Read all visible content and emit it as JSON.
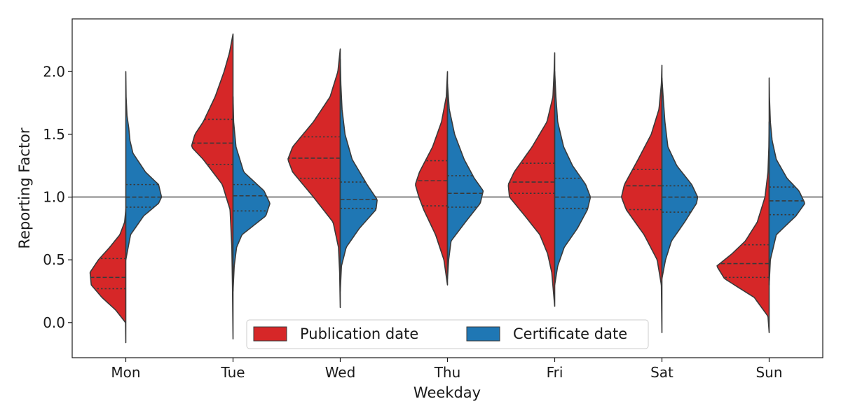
{
  "chart_data": {
    "type": "violin",
    "split": true,
    "xlabel": "Weekday",
    "ylabel": "Reporting Factor",
    "categories": [
      "Mon",
      "Tue",
      "Wed",
      "Thu",
      "Fri",
      "Sat",
      "Sun"
    ],
    "ylim": [
      -0.28,
      2.42
    ],
    "yticks": [
      0.0,
      0.5,
      1.0,
      1.5,
      2.0
    ],
    "ytick_labels": [
      "0.0",
      "0.5",
      "1.0",
      "1.5",
      "2.0"
    ],
    "reference_line": 1.0,
    "legend": {
      "placement": "lower-center",
      "ncol": 2
    },
    "series": [
      {
        "name": "Publication date",
        "color": "#d62728",
        "violins": [
          {
            "quartiles": [
              0.27,
              0.36,
              0.51
            ],
            "profile": [
              [
                -0.16,
                0.0
              ],
              [
                0.0,
                0.005
              ],
              [
                0.1,
                0.17
              ],
              [
                0.2,
                0.4
              ],
              [
                0.3,
                0.58
              ],
              [
                0.4,
                0.6
              ],
              [
                0.5,
                0.46
              ],
              [
                0.6,
                0.27
              ],
              [
                0.7,
                0.1
              ],
              [
                0.8,
                0.02
              ],
              [
                0.9,
                0.0
              ]
            ]
          },
          {
            "quartiles": [
              1.26,
              1.43,
              1.62
            ],
            "profile": [
              [
                -0.13,
                0.0
              ],
              [
                0.3,
                0.01
              ],
              [
                0.6,
                0.02
              ],
              [
                0.9,
                0.05
              ],
              [
                1.1,
                0.18
              ],
              [
                1.3,
                0.5
              ],
              [
                1.4,
                0.7
              ],
              [
                1.5,
                0.64
              ],
              [
                1.6,
                0.5
              ],
              [
                1.8,
                0.3
              ],
              [
                2.0,
                0.15
              ],
              [
                2.15,
                0.06
              ],
              [
                2.3,
                0.0
              ]
            ]
          },
          {
            "quartiles": [
              1.15,
              1.31,
              1.48
            ],
            "profile": [
              [
                0.12,
                0.0
              ],
              [
                0.4,
                0.01
              ],
              [
                0.6,
                0.03
              ],
              [
                0.8,
                0.12
              ],
              [
                1.0,
                0.45
              ],
              [
                1.2,
                0.8
              ],
              [
                1.3,
                0.88
              ],
              [
                1.4,
                0.8
              ],
              [
                1.6,
                0.45
              ],
              [
                1.8,
                0.17
              ],
              [
                2.0,
                0.04
              ],
              [
                2.18,
                0.0
              ]
            ]
          },
          {
            "quartiles": [
              0.93,
              1.13,
              1.29
            ],
            "profile": [
              [
                0.3,
                0.0
              ],
              [
                0.5,
                0.06
              ],
              [
                0.7,
                0.2
              ],
              [
                0.9,
                0.4
              ],
              [
                1.0,
                0.48
              ],
              [
                1.1,
                0.54
              ],
              [
                1.2,
                0.47
              ],
              [
                1.4,
                0.25
              ],
              [
                1.6,
                0.1
              ],
              [
                1.8,
                0.02
              ],
              [
                2.0,
                0.0
              ]
            ]
          },
          {
            "quartiles": [
              1.03,
              1.12,
              1.27
            ],
            "profile": [
              [
                0.13,
                0.0
              ],
              [
                0.4,
                0.05
              ],
              [
                0.55,
                0.12
              ],
              [
                0.7,
                0.25
              ],
              [
                0.85,
                0.5
              ],
              [
                1.0,
                0.76
              ],
              [
                1.1,
                0.78
              ],
              [
                1.2,
                0.68
              ],
              [
                1.4,
                0.38
              ],
              [
                1.6,
                0.13
              ],
              [
                1.8,
                0.03
              ],
              [
                2.0,
                0.01
              ],
              [
                2.15,
                0.0
              ]
            ]
          },
          {
            "quartiles": [
              0.9,
              1.09,
              1.22
            ],
            "profile": [
              [
                -0.08,
                0.0
              ],
              [
                0.3,
                0.01
              ],
              [
                0.5,
                0.08
              ],
              [
                0.7,
                0.3
              ],
              [
                0.9,
                0.6
              ],
              [
                1.0,
                0.68
              ],
              [
                1.1,
                0.63
              ],
              [
                1.3,
                0.4
              ],
              [
                1.5,
                0.18
              ],
              [
                1.7,
                0.05
              ],
              [
                1.9,
                0.01
              ],
              [
                2.05,
                0.0
              ]
            ]
          },
          {
            "quartiles": [
              0.36,
              0.47,
              0.62
            ],
            "profile": [
              [
                -0.08,
                0.0
              ],
              [
                0.05,
                0.02
              ],
              [
                0.2,
                0.25
              ],
              [
                0.35,
                0.75
              ],
              [
                0.45,
                0.88
              ],
              [
                0.55,
                0.62
              ],
              [
                0.65,
                0.4
              ],
              [
                0.8,
                0.2
              ],
              [
                1.0,
                0.07
              ],
              [
                1.2,
                0.02
              ],
              [
                1.4,
                0.005
              ],
              [
                1.6,
                0.0
              ]
            ]
          }
        ]
      },
      {
        "name": "Certificate date",
        "color": "#1f77b4",
        "violins": [
          {
            "quartiles": [
              0.92,
              1.0,
              1.1
            ],
            "profile": [
              [
                0.5,
                0.0
              ],
              [
                0.7,
                0.08
              ],
              [
                0.85,
                0.3
              ],
              [
                0.95,
                0.55
              ],
              [
                1.0,
                0.6
              ],
              [
                1.1,
                0.55
              ],
              [
                1.2,
                0.33
              ],
              [
                1.35,
                0.12
              ],
              [
                1.45,
                0.07
              ],
              [
                1.55,
                0.05
              ],
              [
                1.65,
                0.02
              ],
              [
                1.8,
                0.005
              ],
              [
                2.0,
                0.0
              ]
            ]
          },
          {
            "quartiles": [
              0.89,
              1.01,
              1.1
            ],
            "profile": [
              [
                0.25,
                0.0
              ],
              [
                0.45,
                0.02
              ],
              [
                0.6,
                0.06
              ],
              [
                0.7,
                0.15
              ],
              [
                0.85,
                0.55
              ],
              [
                0.95,
                0.62
              ],
              [
                1.05,
                0.52
              ],
              [
                1.2,
                0.18
              ],
              [
                1.4,
                0.05
              ],
              [
                1.6,
                0.01
              ],
              [
                1.8,
                0.0
              ]
            ]
          },
          {
            "quartiles": [
              0.91,
              0.98,
              1.12
            ],
            "profile": [
              [
                0.25,
                0.0
              ],
              [
                0.45,
                0.02
              ],
              [
                0.6,
                0.1
              ],
              [
                0.75,
                0.32
              ],
              [
                0.9,
                0.6
              ],
              [
                0.98,
                0.62
              ],
              [
                1.1,
                0.45
              ],
              [
                1.3,
                0.2
              ],
              [
                1.5,
                0.08
              ],
              [
                1.7,
                0.03
              ],
              [
                1.9,
                0.01
              ],
              [
                2.1,
                0.0
              ]
            ]
          },
          {
            "quartiles": [
              0.92,
              1.03,
              1.17
            ],
            "profile": [
              [
                0.35,
                0.0
              ],
              [
                0.5,
                0.02
              ],
              [
                0.65,
                0.06
              ],
              [
                0.8,
                0.3
              ],
              [
                0.95,
                0.55
              ],
              [
                1.05,
                0.6
              ],
              [
                1.15,
                0.45
              ],
              [
                1.3,
                0.28
              ],
              [
                1.5,
                0.12
              ],
              [
                1.7,
                0.03
              ],
              [
                1.9,
                0.0
              ]
            ]
          },
          {
            "quartiles": [
              0.91,
              1.0,
              1.15
            ],
            "profile": [
              [
                0.3,
                0.0
              ],
              [
                0.45,
                0.05
              ],
              [
                0.6,
                0.16
              ],
              [
                0.75,
                0.38
              ],
              [
                0.9,
                0.55
              ],
              [
                1.0,
                0.6
              ],
              [
                1.1,
                0.52
              ],
              [
                1.25,
                0.3
              ],
              [
                1.4,
                0.15
              ],
              [
                1.6,
                0.05
              ],
              [
                1.8,
                0.02
              ],
              [
                2.0,
                0.0
              ]
            ]
          },
          {
            "quartiles": [
              0.88,
              1.0,
              1.09
            ],
            "profile": [
              [
                0.35,
                0.0
              ],
              [
                0.5,
                0.06
              ],
              [
                0.65,
                0.16
              ],
              [
                0.8,
                0.38
              ],
              [
                0.95,
                0.58
              ],
              [
                1.0,
                0.6
              ],
              [
                1.1,
                0.5
              ],
              [
                1.25,
                0.25
              ],
              [
                1.4,
                0.1
              ],
              [
                1.6,
                0.05
              ],
              [
                1.8,
                0.02
              ],
              [
                1.95,
                0.0
              ]
            ]
          },
          {
            "quartiles": [
              0.86,
              0.97,
              1.08
            ],
            "profile": [
              [
                0.3,
                0.0
              ],
              [
                0.5,
                0.02
              ],
              [
                0.7,
                0.12
              ],
              [
                0.85,
                0.45
              ],
              [
                0.95,
                0.6
              ],
              [
                1.05,
                0.5
              ],
              [
                1.15,
                0.3
              ],
              [
                1.3,
                0.12
              ],
              [
                1.45,
                0.05
              ],
              [
                1.6,
                0.02
              ],
              [
                1.8,
                0.005
              ],
              [
                1.95,
                0.0
              ]
            ]
          }
        ]
      }
    ]
  }
}
